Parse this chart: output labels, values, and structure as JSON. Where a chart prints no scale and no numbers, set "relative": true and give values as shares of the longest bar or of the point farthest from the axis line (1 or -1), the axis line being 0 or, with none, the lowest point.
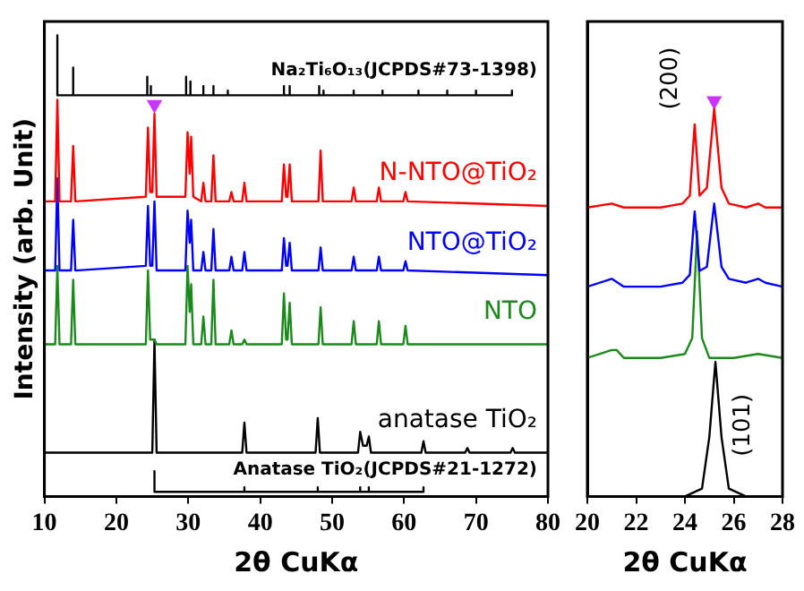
{
  "chart_data": [
    {
      "type": "line",
      "relative": true,
      "xlabel": "2θ CuKα",
      "ylabel": "Intensity (arb. Unit)",
      "xlim": [
        10,
        80
      ],
      "xticks": [
        10,
        20,
        30,
        40,
        50,
        60,
        70,
        80
      ],
      "marker": "none",
      "series": [
        {
          "name": "Na₂Ti₆O₁₃(JCPDS#73-1398)",
          "color": "#000000",
          "x": [
            11.8,
            11.8,
            11.8,
            14.0,
            14.0,
            14.0,
            24.3,
            24.3,
            24.3,
            24.8,
            24.8,
            24.8,
            29.7,
            29.7,
            29.7,
            30.3,
            30.3,
            30.3,
            32.1,
            32.1,
            32.1,
            33.5,
            33.5,
            33.5,
            35.5,
            35.5,
            35.5,
            43.3,
            43.3,
            43.3,
            44.1,
            44.1,
            44.1,
            48.2,
            48.2,
            48.2,
            48.8,
            48.8,
            48.8,
            53,
            53,
            53,
            57,
            57,
            57,
            62,
            62,
            62,
            66,
            66,
            66,
            70,
            70,
            70,
            75,
            75,
            75
          ],
          "values": [
            0.87,
            1.0,
            0.87,
            0.87,
            0.93,
            0.87,
            0.87,
            0.91,
            0.87,
            0.87,
            0.89,
            0.87,
            0.87,
            0.91,
            0.87,
            0.87,
            0.9,
            0.87,
            0.87,
            0.89,
            0.87,
            0.87,
            0.89,
            0.87,
            0.87,
            0.88,
            0.87,
            0.87,
            0.89,
            0.87,
            0.87,
            0.89,
            0.87,
            0.87,
            0.89,
            0.87,
            0.87,
            0.88,
            0.87,
            0.87,
            0.88,
            0.87,
            0.87,
            0.88,
            0.87,
            0.87,
            0.88,
            0.87,
            0.87,
            0.88,
            0.87,
            0.87,
            0.88,
            0.87,
            0.87,
            0.88,
            0.87
          ]
        },
        {
          "name": "N-NTO@TiO₂",
          "color": "#ff0000",
          "x": [
            10,
            11.5,
            11.8,
            12.1,
            13.7,
            14.0,
            14.3,
            24.1,
            24.4,
            24.7,
            25.0,
            25.3,
            25.6,
            29.6,
            29.9,
            30.2,
            30.4,
            30.7,
            31.8,
            32.1,
            32.4,
            33.2,
            33.5,
            33.8,
            35.7,
            36,
            36.3,
            37.5,
            37.8,
            38.1,
            43.0,
            43.3,
            43.6,
            43.8,
            44.1,
            44.4,
            48.1,
            48.4,
            48.7,
            52.7,
            53,
            53.3,
            56.2,
            56.5,
            56.8,
            59.9,
            60.2,
            60.5,
            80
          ],
          "values": [
            0.64,
            0.64,
            0.86,
            0.64,
            0.64,
            0.76,
            0.64,
            0.65,
            0.8,
            0.66,
            0.66,
            0.83,
            0.65,
            0.65,
            0.79,
            0.7,
            0.78,
            0.65,
            0.64,
            0.68,
            0.64,
            0.64,
            0.74,
            0.64,
            0.64,
            0.66,
            0.64,
            0.64,
            0.68,
            0.64,
            0.64,
            0.72,
            0.65,
            0.65,
            0.72,
            0.64,
            0.64,
            0.75,
            0.64,
            0.64,
            0.67,
            0.64,
            0.64,
            0.67,
            0.64,
            0.64,
            0.66,
            0.64,
            0.63
          ]
        },
        {
          "name": "NTO@TiO₂",
          "color": "#0000ff",
          "x": [
            10,
            11.5,
            11.8,
            12.1,
            13.7,
            14.0,
            14.3,
            24.1,
            24.4,
            24.7,
            25.0,
            25.3,
            25.6,
            29.6,
            29.9,
            30.2,
            30.4,
            30.7,
            31.8,
            32.1,
            32.4,
            33.2,
            33.5,
            33.8,
            35.7,
            36,
            36.3,
            37.5,
            37.8,
            38.1,
            43.0,
            43.3,
            43.6,
            43.8,
            44.1,
            44.4,
            48.1,
            48.4,
            48.7,
            52.7,
            53,
            53.3,
            56.2,
            56.5,
            56.8,
            59.9,
            60.2,
            60.5,
            80
          ],
          "values": [
            0.49,
            0.49,
            0.69,
            0.49,
            0.49,
            0.6,
            0.49,
            0.5,
            0.63,
            0.5,
            0.5,
            0.64,
            0.49,
            0.49,
            0.62,
            0.55,
            0.6,
            0.49,
            0.49,
            0.53,
            0.49,
            0.49,
            0.58,
            0.49,
            0.49,
            0.52,
            0.49,
            0.49,
            0.53,
            0.49,
            0.49,
            0.56,
            0.5,
            0.5,
            0.55,
            0.49,
            0.49,
            0.54,
            0.49,
            0.49,
            0.52,
            0.49,
            0.49,
            0.52,
            0.49,
            0.49,
            0.51,
            0.49,
            0.48
          ]
        },
        {
          "name": "NTO",
          "color": "#1a8a1a",
          "x": [
            10,
            11.5,
            11.8,
            12.1,
            13.7,
            14.0,
            14.3,
            24.1,
            24.4,
            24.7,
            25.0,
            25.3,
            25.6,
            29.6,
            29.9,
            30.2,
            30.4,
            30.7,
            31.8,
            32.1,
            32.4,
            33.2,
            33.5,
            33.8,
            35.7,
            36,
            36.3,
            37.5,
            37.8,
            38.1,
            43.0,
            43.3,
            43.6,
            43.8,
            44.1,
            44.4,
            48.1,
            48.4,
            48.7,
            52.7,
            53,
            53.3,
            56.2,
            56.5,
            56.8,
            59.9,
            60.2,
            60.5,
            80
          ],
          "values": [
            0.33,
            0.33,
            0.5,
            0.33,
            0.33,
            0.47,
            0.33,
            0.33,
            0.49,
            0.34,
            0.34,
            0.34,
            0.33,
            0.33,
            0.5,
            0.4,
            0.46,
            0.33,
            0.33,
            0.39,
            0.33,
            0.33,
            0.47,
            0.33,
            0.33,
            0.36,
            0.33,
            0.33,
            0.34,
            0.33,
            0.33,
            0.44,
            0.34,
            0.34,
            0.42,
            0.33,
            0.33,
            0.41,
            0.33,
            0.33,
            0.38,
            0.33,
            0.33,
            0.38,
            0.33,
            0.33,
            0.37,
            0.33,
            0.33
          ]
        },
        {
          "name": "anatase TiO₂",
          "color": "#000000",
          "x": [
            10,
            25.0,
            25.3,
            25.6,
            37.5,
            37.8,
            38.1,
            47.7,
            48.0,
            48.3,
            53.6,
            53.9,
            54.3,
            54.8,
            55.1,
            55.4,
            62.4,
            62.7,
            63.0,
            68.5,
            68.8,
            69.1,
            74.8,
            75.1,
            75.4,
            80
          ],
          "values": [
            0.095,
            0.095,
            0.34,
            0.095,
            0.095,
            0.16,
            0.095,
            0.095,
            0.17,
            0.095,
            0.095,
            0.14,
            0.11,
            0.11,
            0.13,
            0.095,
            0.095,
            0.12,
            0.095,
            0.095,
            0.105,
            0.095,
            0.095,
            0.105,
            0.095,
            0.095
          ]
        },
        {
          "name": "Anatase TiO₂(JCPDS#21-1272)",
          "color": "#000000",
          "x": [
            25.3,
            25.3,
            25.3,
            37.8,
            37.8,
            37.8,
            48.0,
            48.0,
            48.0,
            53.9,
            53.9,
            53.9,
            55.1,
            55.1,
            55.1,
            62.7,
            62.7,
            62.7
          ],
          "values": [
            0.01,
            0.055,
            0.01,
            0.01,
            0.02,
            0.01,
            0.01,
            0.02,
            0.01,
            0.01,
            0.02,
            0.01,
            0.01,
            0.02,
            0.01,
            0.01,
            0.02,
            0.01
          ]
        },
        {
          "type": "scatter",
          "marker": "triangle",
          "color": "#cc33ff",
          "x": [
            25.3
          ],
          "values": [
            0.85
          ]
        }
      ]
    },
    {
      "type": "line",
      "relative": true,
      "xlabel": "2θ CuKα",
      "xlim": [
        20,
        28
      ],
      "xticks": [
        20,
        22,
        24,
        26,
        28
      ],
      "marker": "none",
      "annotations": [
        "(200)",
        "(101)"
      ],
      "series": [
        {
          "color": "#ff0000",
          "x": [
            20,
            21,
            21.5,
            22,
            23,
            23.9,
            24.2,
            24.4,
            24.6,
            24.9,
            25.2,
            25.5,
            25.8,
            26.5,
            27,
            27.3,
            28
          ],
          "values": [
            0.73,
            0.74,
            0.73,
            0.73,
            0.73,
            0.74,
            0.76,
            0.94,
            0.76,
            0.78,
            0.98,
            0.78,
            0.74,
            0.73,
            0.74,
            0.73,
            0.73
          ]
        },
        {
          "color": "#0000ff",
          "x": [
            20,
            21,
            21.5,
            22,
            23,
            23.9,
            24.2,
            24.4,
            24.6,
            24.9,
            25.2,
            25.5,
            25.8,
            26.5,
            27,
            27.3,
            28
          ],
          "values": [
            0.53,
            0.55,
            0.53,
            0.53,
            0.53,
            0.54,
            0.56,
            0.72,
            0.57,
            0.58,
            0.74,
            0.58,
            0.55,
            0.54,
            0.55,
            0.54,
            0.53
          ]
        },
        {
          "color": "#1a8a1a",
          "x": [
            20,
            21,
            21.2,
            21.5,
            22,
            23,
            24.0,
            24.3,
            24.5,
            24.7,
            25.0,
            26,
            27,
            28
          ],
          "values": [
            0.35,
            0.37,
            0.37,
            0.35,
            0.35,
            0.35,
            0.36,
            0.4,
            0.67,
            0.4,
            0.35,
            0.35,
            0.36,
            0.35
          ]
        },
        {
          "color": "#000000",
          "x": [
            20,
            22,
            24,
            24.7,
            25.0,
            25.25,
            25.5,
            25.8,
            26.5,
            28
          ],
          "values": [
            0,
            0,
            0,
            0.02,
            0.15,
            0.34,
            0.15,
            0.02,
            0,
            0
          ]
        },
        {
          "type": "scatter",
          "marker": "triangle",
          "color": "#cc33ff",
          "x": [
            25.2
          ],
          "values": [
            1.0
          ]
        }
      ]
    }
  ]
}
